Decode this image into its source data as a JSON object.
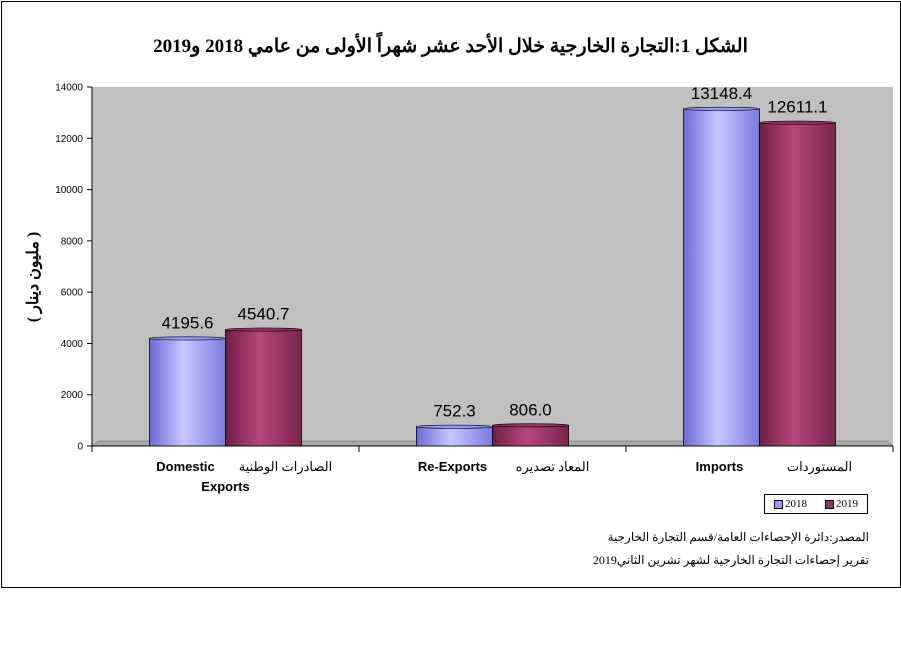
{
  "title": "الشكل 1:التجارة الخارجية خلال الأحد عشر شهراً الأولى من عامي 2018 و2019",
  "chart_data": {
    "type": "bar",
    "ylabel": "( مليون دينار )",
    "ylim": [
      0,
      14000
    ],
    "yticks": [
      0,
      2000,
      4000,
      6000,
      8000,
      10000,
      12000,
      14000
    ],
    "categories": [
      {
        "en": "Domestic Exports",
        "en_lines": [
          "Domestic",
          "Exports"
        ],
        "ar": "الصادرات الوطنية"
      },
      {
        "en": "Re-Exports",
        "en_lines": [
          "Re-Exports"
        ],
        "ar": "المعاد تصديره"
      },
      {
        "en": "Imports",
        "en_lines": [
          "Imports"
        ],
        "ar": "المستوردات"
      }
    ],
    "series": [
      {
        "name": "2018",
        "values": [
          4195.6,
          752.3,
          13148.4
        ],
        "labels": [
          "4195.6",
          "752.3",
          "13148.4"
        ],
        "color": "#9999ff"
      },
      {
        "name": "2019",
        "values": [
          4540.7,
          806.0,
          12611.1
        ],
        "labels": [
          "4540.7",
          "806.0",
          "12611.1"
        ],
        "color": "#993366"
      }
    ],
    "grid": false,
    "plot_background": "#c0c0c0",
    "legend_position": "bottom-right"
  },
  "legend": {
    "s1": "2018",
    "s2": "2019"
  },
  "notes": {
    "source": "المصدر:دائرة الإحصاءات العامة/قسم التجارة الخارجية",
    "report": "تقرير إحصاءات التجارة الخارجية لشهر تشرين الثاني2019"
  }
}
